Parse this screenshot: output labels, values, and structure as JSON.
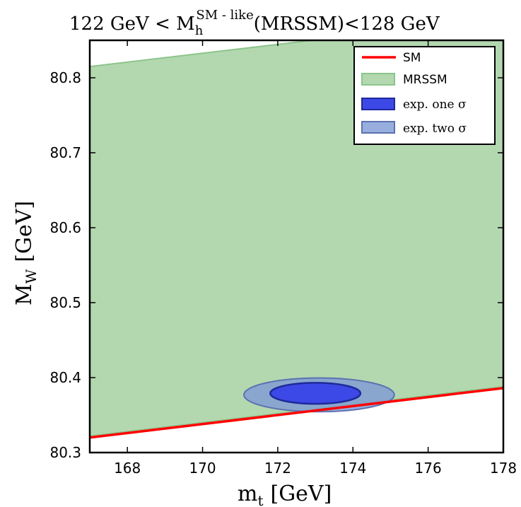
{
  "chart_data": {
    "type": "area",
    "title": {
      "pre": "122 GeV < M",
      "sub": "h",
      "sup": "SM - like",
      "post": "(MRSSM)<128 GeV"
    },
    "xlabel": {
      "main": "m",
      "sub": "t",
      "unit": "[GeV]"
    },
    "ylabel": {
      "main": "M",
      "sub": "W",
      "unit": "[GeV]"
    },
    "xlim": [
      167,
      178
    ],
    "ylim": [
      80.3,
      80.85
    ],
    "xticks": [
      "168",
      "170",
      "172",
      "174",
      "176",
      "178"
    ],
    "yticks": [
      "80.3",
      "80.4",
      "80.5",
      "80.6",
      "80.7",
      "80.8"
    ],
    "grid": false,
    "legend_position": "top-right",
    "colors": {
      "sm": "#ff0000",
      "mrssm_fill": "#b3d8b0",
      "mrssm_edge": "#8cc58a",
      "one_sigma_fill": "#3d49e6",
      "one_sigma_edge": "#1e2a9a",
      "two_sigma_fill": "#7e9ad6",
      "two_sigma_edge": "#5d72b0"
    },
    "series": [
      {
        "name": "SM",
        "kind": "line",
        "points": [
          [
            167,
            80.32
          ],
          [
            178,
            80.386
          ]
        ]
      },
      {
        "name": "MRSSM",
        "kind": "band",
        "lower": [
          [
            167,
            80.322
          ],
          [
            178,
            80.388
          ]
        ],
        "upper": [
          [
            167,
            80.815
          ],
          [
            178,
            80.88
          ]
        ]
      },
      {
        "name": "exp. one σ",
        "kind": "ellipse",
        "center": [
          173.0,
          80.379
        ],
        "radii": [
          1.2,
          0.014
        ]
      },
      {
        "name": "exp. two σ",
        "kind": "ellipse",
        "center": [
          173.1,
          80.377
        ],
        "radii": [
          2.0,
          0.0225
        ]
      }
    ]
  }
}
